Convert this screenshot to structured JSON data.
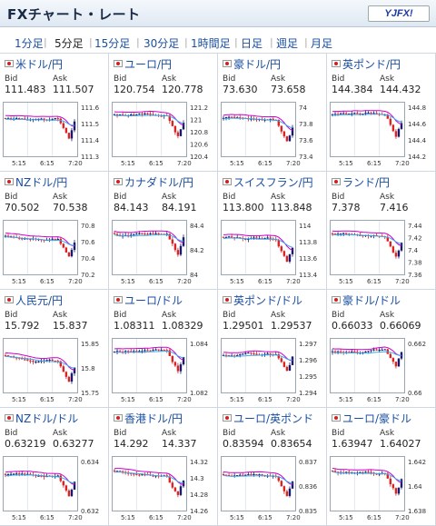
{
  "header": {
    "title": "FXチャート・レート",
    "logo_text": "YJFX!"
  },
  "tabs": [
    {
      "label": "1分足",
      "active": false
    },
    {
      "label": "5分足",
      "active": true
    },
    {
      "label": "15分足",
      "active": false
    },
    {
      "label": "30分足",
      "active": false
    },
    {
      "label": "1時間足",
      "active": false
    },
    {
      "label": "日足",
      "active": false
    },
    {
      "label": "週足",
      "active": false
    },
    {
      "label": "月足",
      "active": false
    }
  ],
  "bid_label": "Bid",
  "ask_label": "Ask",
  "time_labels": [
    "5:15",
    "6:15",
    "7:20"
  ],
  "colors": {
    "link": "#1a4fa0",
    "ma_line": "#cc00cc",
    "trend_line": "#33aaee",
    "down_candle": "#dd2222",
    "up_candle": "#1a1a6a"
  },
  "pairs": [
    {
      "name": "米ドル/円",
      "bid": "111.483",
      "ask": "111.507",
      "y_ticks": [
        "111.6",
        "111.5",
        "111.4",
        "111.3"
      ]
    },
    {
      "name": "ユーロ/円",
      "bid": "120.754",
      "ask": "120.778",
      "y_ticks": [
        "121.2",
        "121",
        "120.8",
        "120.6",
        "120.4"
      ]
    },
    {
      "name": "豪ドル/円",
      "bid": "73.630",
      "ask": "73.658",
      "y_ticks": [
        "74",
        "73.8",
        "73.6",
        "73.4"
      ]
    },
    {
      "name": "英ポンド/円",
      "bid": "144.384",
      "ask": "144.432",
      "y_ticks": [
        "144.8",
        "144.6",
        "144.4",
        "144.2"
      ]
    },
    {
      "name": "NZドル/円",
      "bid": "70.502",
      "ask": "70.538",
      "y_ticks": [
        "70.8",
        "70.6",
        "70.4",
        "70.2"
      ]
    },
    {
      "name": "カナダドル/円",
      "bid": "84.143",
      "ask": "84.191",
      "y_ticks": [
        "84.4",
        "84.2",
        "84"
      ]
    },
    {
      "name": "スイスフラン/円",
      "bid": "113.800",
      "ask": "113.848",
      "y_ticks": [
        "114",
        "113.8",
        "113.6",
        "113.4"
      ]
    },
    {
      "name": "ランド/円",
      "bid": "7.378",
      "ask": "7.416",
      "y_ticks": [
        "7.44",
        "7.42",
        "7.4",
        "7.38",
        "7.36"
      ]
    },
    {
      "name": "人民元/円",
      "bid": "15.792",
      "ask": "15.837",
      "y_ticks": [
        "15.85",
        "15.8",
        "15.75"
      ]
    },
    {
      "name": "ユーロ/ドル",
      "bid": "1.08311",
      "ask": "1.08329",
      "y_ticks": [
        "1.084",
        "1.082"
      ]
    },
    {
      "name": "英ポンド/ドル",
      "bid": "1.29501",
      "ask": "1.29537",
      "y_ticks": [
        "1.297",
        "1.296",
        "1.295",
        "1.294"
      ]
    },
    {
      "name": "豪ドル/ドル",
      "bid": "0.66033",
      "ask": "0.66069",
      "y_ticks": [
        "0.662",
        "0.66"
      ]
    },
    {
      "name": "NZドル/ドル",
      "bid": "0.63219",
      "ask": "0.63277",
      "y_ticks": [
        "0.634",
        "0.632"
      ]
    },
    {
      "name": "香港ドル/円",
      "bid": "14.292",
      "ask": "14.337",
      "y_ticks": [
        "14.32",
        "14.3",
        "14.28",
        "14.26"
      ]
    },
    {
      "name": "ユーロ/英ポンド",
      "bid": "0.83594",
      "ask": "0.83654",
      "y_ticks": [
        "0.837",
        "0.836",
        "0.835"
      ]
    },
    {
      "name": "ユーロ/豪ドル",
      "bid": "1.63947",
      "ask": "1.64027",
      "y_ticks": [
        "1.642",
        "1.64",
        "1.638"
      ]
    }
  ]
}
